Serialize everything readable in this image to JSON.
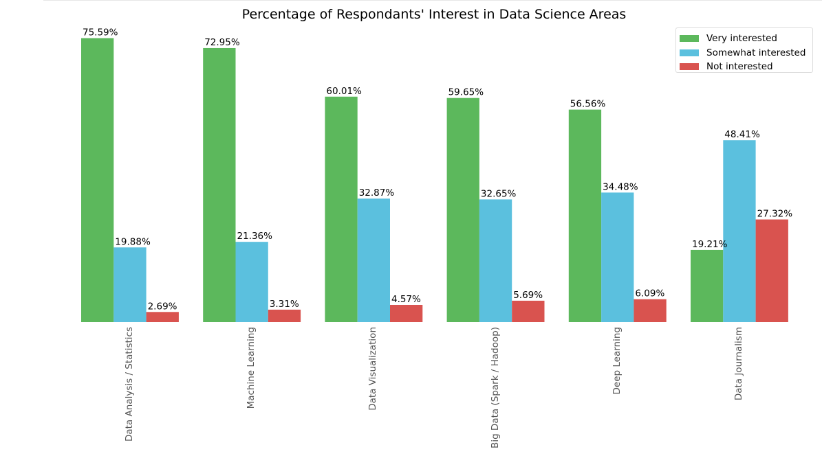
{
  "chart_data": {
    "type": "bar",
    "title": "Percentage of Respondants' Interest in Data Science Areas",
    "xlabel": "",
    "ylabel": "",
    "ylim": [
      0,
      77
    ],
    "grid": false,
    "legend_position": "top-right",
    "x_tick_rotation": "vertical",
    "categories": [
      "Data Analysis / Statistics",
      "Machine Learning",
      "Data Visualization",
      "Big Data (Spark / Hadoop)",
      "Deep Learning",
      "Data Journalism"
    ],
    "series": [
      {
        "name": "Very interested",
        "color": "#5cb85c",
        "values": [
          75.59,
          72.95,
          60.01,
          59.65,
          56.56,
          19.21
        ],
        "labels": [
          "75.59%",
          "72.95%",
          "60.01%",
          "59.65%",
          "56.56%",
          "19.21%"
        ]
      },
      {
        "name": "Somewhat interested",
        "color": "#5bc0de",
        "values": [
          19.88,
          21.36,
          32.87,
          32.65,
          34.48,
          48.41
        ],
        "labels": [
          "19.88%",
          "21.36%",
          "32.87%",
          "32.65%",
          "34.48%",
          "48.41%"
        ]
      },
      {
        "name": "Not interested",
        "color": "#d9534f",
        "values": [
          2.69,
          3.31,
          4.57,
          5.69,
          6.09,
          27.32
        ],
        "labels": [
          "2.69%",
          "3.31%",
          "4.57%",
          "5.69%",
          "6.09%",
          "27.32%"
        ]
      }
    ]
  }
}
